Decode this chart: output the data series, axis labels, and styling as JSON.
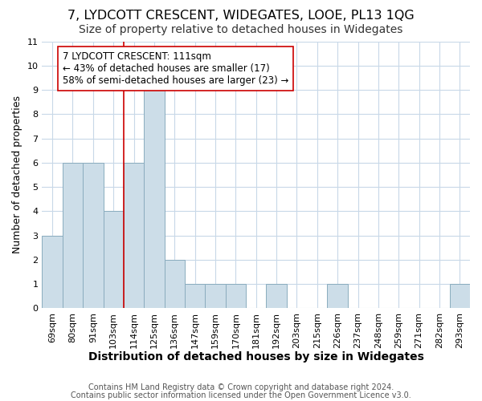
{
  "title": "7, LYDCOTT CRESCENT, WIDEGATES, LOOE, PL13 1QG",
  "subtitle": "Size of property relative to detached houses in Widegates",
  "xlabel": "Distribution of detached houses by size in Widegates",
  "ylabel": "Number of detached properties",
  "categories": [
    "69sqm",
    "80sqm",
    "91sqm",
    "103sqm",
    "114sqm",
    "125sqm",
    "136sqm",
    "147sqm",
    "159sqm",
    "170sqm",
    "181sqm",
    "192sqm",
    "203sqm",
    "215sqm",
    "226sqm",
    "237sqm",
    "248sqm",
    "259sqm",
    "271sqm",
    "282sqm",
    "293sqm"
  ],
  "values": [
    3,
    6,
    6,
    4,
    6,
    9,
    2,
    1,
    1,
    1,
    0,
    1,
    0,
    0,
    1,
    0,
    0,
    0,
    0,
    0,
    1
  ],
  "bar_color": "#ccdde8",
  "bar_edge_color": "#8aacbe",
  "vline_index": 4,
  "vline_color": "#cc0000",
  "annotation_text": "7 LYDCOTT CRESCENT: 111sqm\n← 43% of detached houses are smaller (17)\n58% of semi-detached houses are larger (23) →",
  "annotation_box_color": "#ffffff",
  "annotation_box_edge": "#cc0000",
  "ylim": [
    0,
    11
  ],
  "yticks": [
    0,
    1,
    2,
    3,
    4,
    5,
    6,
    7,
    8,
    9,
    10,
    11
  ],
  "footer_line1": "Contains HM Land Registry data © Crown copyright and database right 2024.",
  "footer_line2": "Contains public sector information licensed under the Open Government Licence v3.0.",
  "bg_color": "#ffffff",
  "grid_color": "#c8d8e8",
  "title_fontsize": 11.5,
  "subtitle_fontsize": 10,
  "xlabel_fontsize": 10,
  "ylabel_fontsize": 9,
  "tick_fontsize": 8,
  "ann_fontsize": 8.5,
  "footer_fontsize": 7
}
